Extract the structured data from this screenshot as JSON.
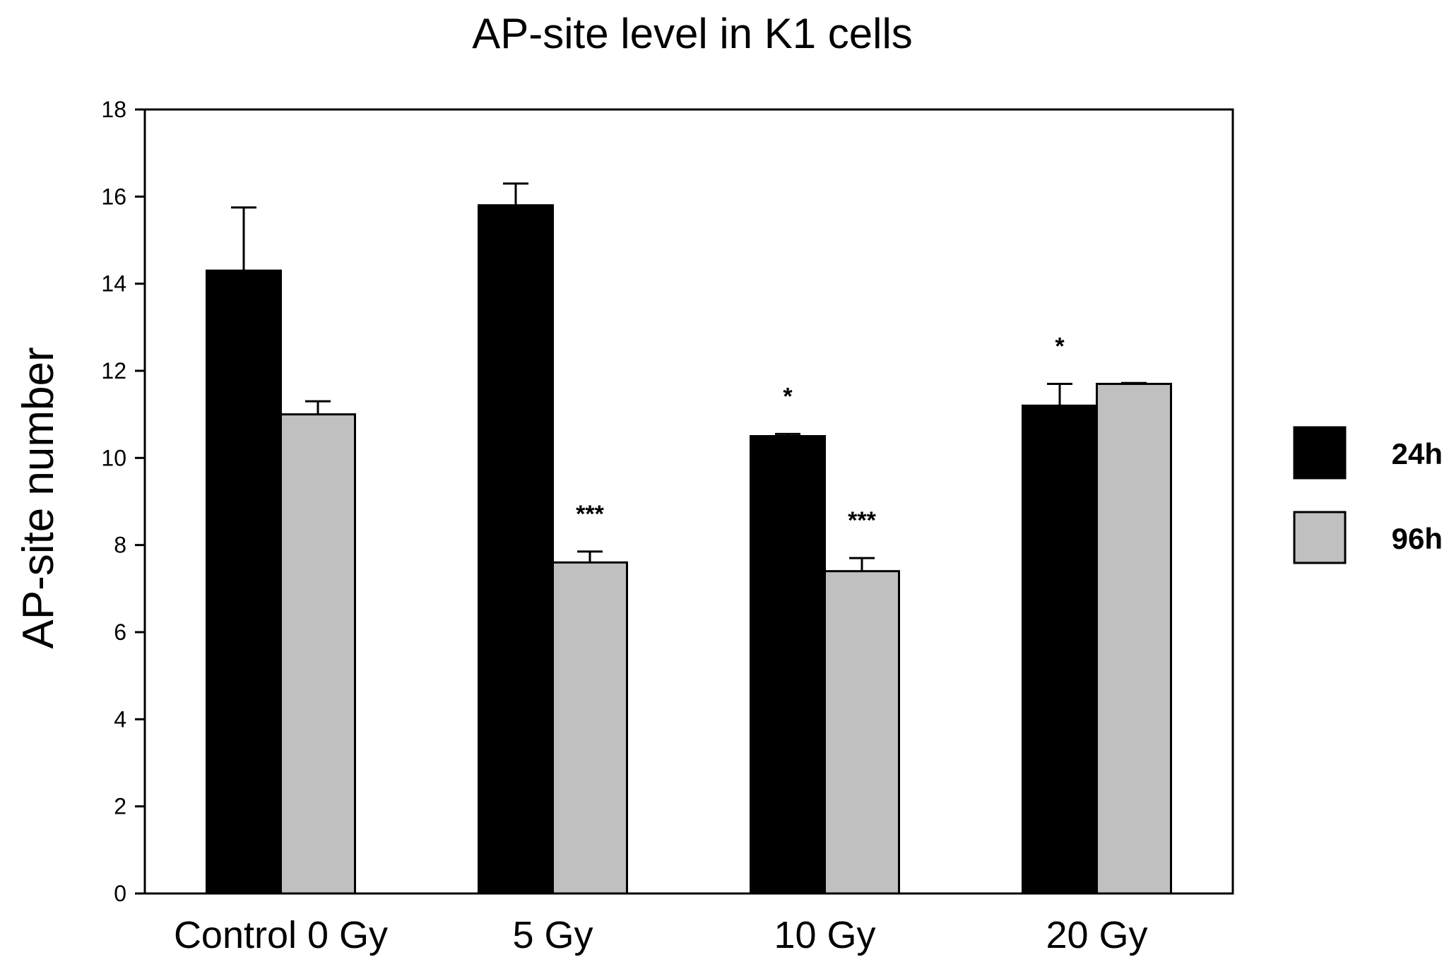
{
  "chart_data": {
    "type": "bar",
    "title": "AP-site level in K1 cells",
    "xlabel": "",
    "ylabel": "AP-site number",
    "ylim": [
      0,
      18
    ],
    "yticks": [
      0,
      2,
      4,
      6,
      8,
      10,
      12,
      14,
      16,
      18
    ],
    "categories": [
      "Control 0 Gy",
      "5 Gy",
      "10 Gy",
      "20 Gy"
    ],
    "legend_position": "right",
    "series": [
      {
        "name": "24h",
        "color": "#000000",
        "values": [
          14.3,
          15.8,
          10.5,
          11.2
        ],
        "errors": [
          1.45,
          0.5,
          0.05,
          0.5
        ],
        "annotations": [
          "",
          "",
          "*",
          "*"
        ]
      },
      {
        "name": "96h",
        "color": "#c0c0c0",
        "values": [
          11.0,
          7.6,
          7.4,
          11.7
        ],
        "errors": [
          0.3,
          0.25,
          0.3,
          0.02
        ],
        "annotations": [
          "",
          "***",
          "***",
          ""
        ]
      }
    ]
  }
}
